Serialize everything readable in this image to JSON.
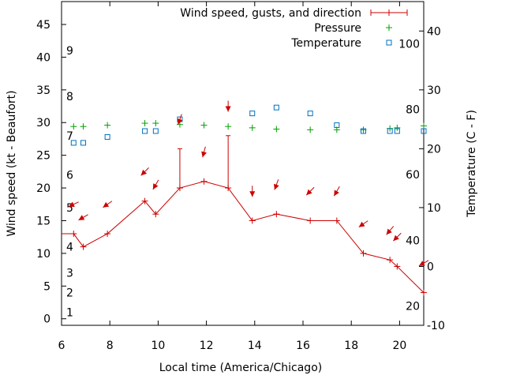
{
  "chart_data": {
    "type": "line",
    "xlabel": "Local time (America/Chicago)",
    "ylabel": "Wind speed (kt - Beaufort)",
    "y2label": "Temperature (C - F)",
    "xlim": [
      6,
      21
    ],
    "ylim": [
      -1,
      48.5
    ],
    "y2lim": [
      -10,
      45
    ],
    "x_ticks": [
      6,
      8,
      10,
      12,
      14,
      16,
      18,
      20
    ],
    "y_ticks": [
      0,
      5,
      10,
      15,
      20,
      25,
      30,
      35,
      40,
      45
    ],
    "y2_ticks": [
      -10,
      0,
      10,
      20,
      30,
      40
    ],
    "fahrenheit_labels": [
      {
        "label": "20",
        "c": -6.7
      },
      {
        "label": "40",
        "c": 4.4
      },
      {
        "label": "60",
        "c": 15.6
      },
      {
        "label": "80",
        "c": 26.7
      },
      {
        "label": "100",
        "c": 37.8
      }
    ],
    "beaufort_labels": [
      {
        "label": "1",
        "kt": 1
      },
      {
        "label": "2",
        "kt": 4
      },
      {
        "label": "3",
        "kt": 7
      },
      {
        "label": "4",
        "kt": 11
      },
      {
        "label": "5",
        "kt": 17
      },
      {
        "label": "6",
        "kt": 22
      },
      {
        "label": "7",
        "kt": 28
      },
      {
        "label": "8",
        "kt": 34
      },
      {
        "label": "9",
        "kt": 41
      }
    ],
    "legend": {
      "placement": "top-right"
    },
    "series": [
      {
        "name": "Wind speed, gusts, and direction",
        "color": "#cc0000",
        "x": [
          6.5,
          6.9,
          7.9,
          9.45,
          9.9,
          10.9,
          11.9,
          12.9,
          13.9,
          14.9,
          16.3,
          17.4,
          18.5,
          19.6,
          19.9,
          21.0
        ],
        "values": [
          13,
          11,
          13,
          18,
          16,
          20,
          21,
          20,
          15,
          16,
          15,
          15,
          10,
          9,
          8,
          4
        ],
        "gusts": [
          null,
          null,
          null,
          null,
          null,
          26,
          null,
          28,
          null,
          null,
          null,
          null,
          null,
          null,
          null,
          null
        ]
      },
      {
        "name": "Pressure",
        "color": "#00a000",
        "x": [
          6.5,
          6.9,
          7.9,
          9.45,
          9.9,
          10.9,
          11.9,
          12.9,
          13.9,
          14.9,
          16.3,
          17.4,
          18.5,
          19.6,
          19.9,
          21.0
        ],
        "values": [
          29.4,
          29.4,
          29.6,
          29.9,
          29.9,
          29.7,
          29.6,
          29.4,
          29.2,
          29.0,
          28.9,
          28.9,
          28.9,
          29.1,
          29.2,
          29.5
        ]
      },
      {
        "name": "Temperature",
        "color": "#0070c0",
        "x": [
          6.5,
          6.9,
          7.9,
          9.45,
          9.9,
          10.9,
          13.9,
          14.9,
          16.3,
          17.4,
          18.5,
          19.6,
          19.9,
          21.0
        ],
        "values": [
          21,
          21,
          22,
          23,
          23,
          25,
          26,
          27,
          26,
          24,
          23,
          23,
          23,
          23
        ]
      }
    ],
    "wind_directions": {
      "x": [
        6.5,
        6.9,
        7.9,
        9.45,
        9.9,
        10.9,
        11.9,
        12.9,
        13.9,
        14.9,
        16.3,
        17.4,
        18.5,
        19.6,
        19.9,
        21.0
      ],
      "speed": [
        17.5,
        15.5,
        17.5,
        22.5,
        20.5,
        30.5,
        25.5,
        32.5,
        19.5,
        20.5,
        19.5,
        19.5,
        14.5,
        13.5,
        12.5,
        8.5
      ],
      "angle_deg": [
        115,
        120,
        125,
        135,
        150,
        160,
        165,
        180,
        180,
        160,
        135,
        150,
        125,
        140,
        135,
        120
      ]
    }
  }
}
